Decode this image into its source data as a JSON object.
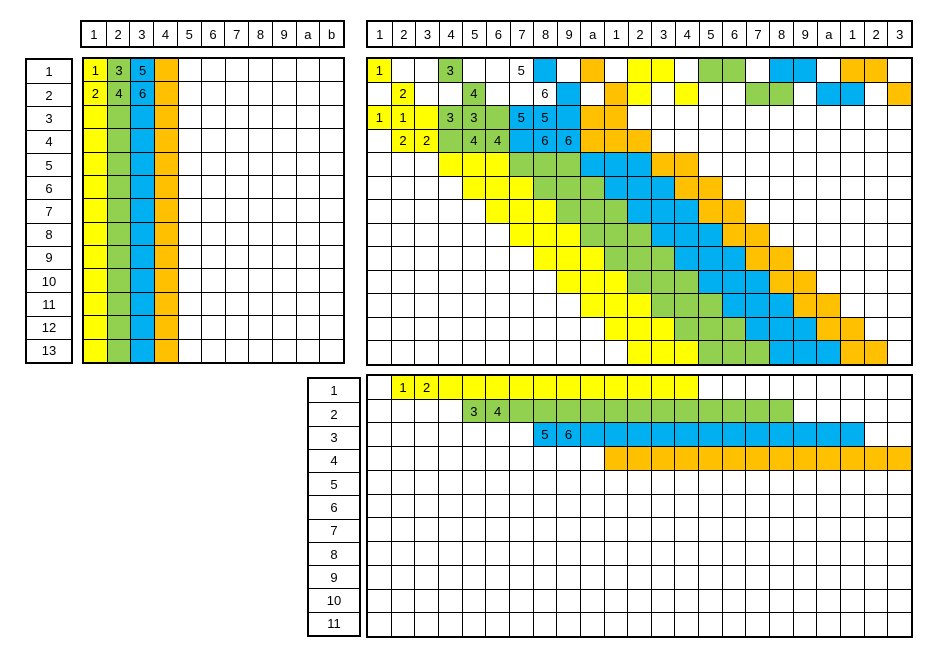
{
  "palette": {
    "Y": "#ffff00",
    "G": "#92d050",
    "B": "#00b0f0",
    "O": "#ffc000"
  },
  "header_small": [
    "1",
    "2",
    "3",
    "4",
    "5",
    "6",
    "7",
    "8",
    "9",
    "a",
    "b"
  ],
  "header_large": [
    "1",
    "2",
    "3",
    "4",
    "5",
    "6",
    "7",
    "8",
    "9",
    "a",
    "1",
    "2",
    "3",
    "4",
    "5",
    "6",
    "7",
    "8",
    "9",
    "a",
    "1",
    "2",
    "3"
  ],
  "rows_top": [
    "1",
    "2",
    "3",
    "4",
    "5",
    "6",
    "7",
    "8",
    "9",
    "10",
    "11",
    "12",
    "13"
  ],
  "rows_bottom": [
    "1",
    "2",
    "3",
    "4",
    "5",
    "6",
    "7",
    "8",
    "9",
    "10",
    "11"
  ],
  "grid_small": {
    "cols": 11,
    "rows": [
      "YGBO.......",
      "YGBO.......",
      "YGBO.......",
      "YGBO.......",
      "YGBO.......",
      "YGBO.......",
      "YGBO.......",
      "YGBO.......",
      "YGBO.......",
      "YGBO.......",
      "YGBO.......",
      "YGBO.......",
      "YGBO......."
    ],
    "labels": [
      {
        "r": 0,
        "c": 0,
        "t": "1"
      },
      {
        "r": 0,
        "c": 1,
        "t": "3"
      },
      {
        "r": 0,
        "c": 2,
        "t": "5"
      },
      {
        "r": 1,
        "c": 0,
        "t": "2"
      },
      {
        "r": 1,
        "c": 1,
        "t": "4"
      },
      {
        "r": 1,
        "c": 2,
        "t": "6"
      }
    ]
  },
  "grid_large": {
    "cols": 23,
    "rows": [
      "Y..G...B.O.YY.GG.BB.OO.",
      ".Y..G...B.OY.Y..GG.BB.O",
      "YYYGGGBBBOO............",
      ".YYGGGBBBOOO...........",
      "...YYYGGGBBBOO.........",
      "....YYYGGGBBBOO........",
      ".....YYYGGGBBBOO.......",
      "......YYYGGGBBBOO......",
      ".......YYYGGGBBBOO.....",
      "........YYYGGGBBBOO....",
      ".........YYYGGGBBBOO...",
      "..........YYYGGGBBBOO..",
      "...........YYYGGGBBBOO."
    ],
    "labels": [
      {
        "r": 0,
        "c": 0,
        "t": "1"
      },
      {
        "r": 0,
        "c": 3,
        "t": "3"
      },
      {
        "r": 0,
        "c": 6,
        "t": "5"
      },
      {
        "r": 1,
        "c": 1,
        "t": "2"
      },
      {
        "r": 1,
        "c": 4,
        "t": "4"
      },
      {
        "r": 1,
        "c": 7,
        "t": "6"
      },
      {
        "r": 2,
        "c": 0,
        "t": "1"
      },
      {
        "r": 2,
        "c": 1,
        "t": "1"
      },
      {
        "r": 2,
        "c": 3,
        "t": "3"
      },
      {
        "r": 2,
        "c": 4,
        "t": "3"
      },
      {
        "r": 2,
        "c": 6,
        "t": "5"
      },
      {
        "r": 2,
        "c": 7,
        "t": "5"
      },
      {
        "r": 3,
        "c": 1,
        "t": "2"
      },
      {
        "r": 3,
        "c": 2,
        "t": "2"
      },
      {
        "r": 3,
        "c": 4,
        "t": "4"
      },
      {
        "r": 3,
        "c": 5,
        "t": "4"
      },
      {
        "r": 3,
        "c": 7,
        "t": "6"
      },
      {
        "r": 3,
        "c": 8,
        "t": "6"
      }
    ]
  },
  "grid_bottom": {
    "cols": 23,
    "rows": [
      ".YYYYYYYYYYYYY.........",
      "....GGGGGGGGGGGGGG.....",
      ".......BBBBBBBBBBBBBB..",
      "..........OOOOOOOOOOOOO",
      ".......................",
      ".......................",
      ".......................",
      ".......................",
      ".......................",
      ".......................",
      "......................."
    ],
    "labels": [
      {
        "r": 0,
        "c": 1,
        "t": "1"
      },
      {
        "r": 0,
        "c": 2,
        "t": "2"
      },
      {
        "r": 1,
        "c": 4,
        "t": "3"
      },
      {
        "r": 1,
        "c": 5,
        "t": "4"
      },
      {
        "r": 2,
        "c": 7,
        "t": "5"
      },
      {
        "r": 2,
        "c": 8,
        "t": "6"
      }
    ]
  }
}
